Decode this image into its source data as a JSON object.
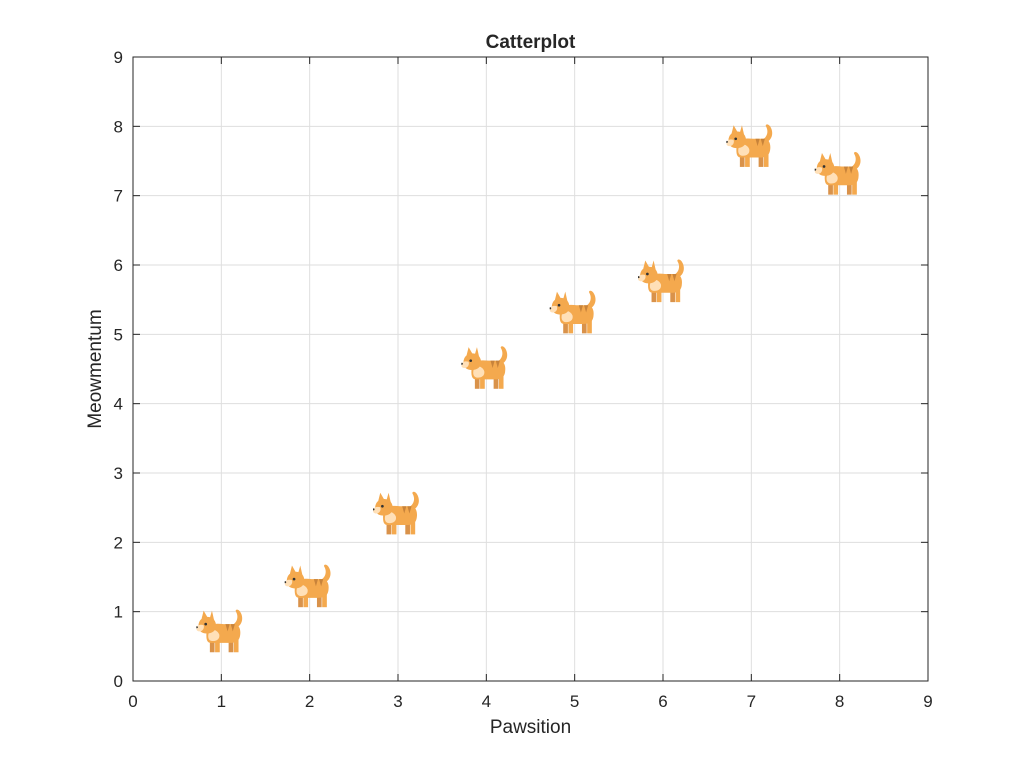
{
  "chart_data": {
    "type": "scatter",
    "title": "Catterplot",
    "xlabel": "Pawsition",
    "ylabel": "Meowmentum",
    "xlim": [
      0,
      9
    ],
    "ylim": [
      0,
      9
    ],
    "xticks": [
      "0",
      "1",
      "2",
      "3",
      "4",
      "5",
      "6",
      "7",
      "8",
      "9"
    ],
    "yticks": [
      "0",
      "1",
      "2",
      "3",
      "4",
      "5",
      "6",
      "7",
      "8",
      "9"
    ],
    "grid": true,
    "marker": "cat-icon",
    "colors": {
      "body": "#F4A94E",
      "stripe": "#C8833A",
      "light": "#FFE0B8",
      "eye": "#333333"
    },
    "series": [
      {
        "points": [
          {
            "x": 1,
            "y": 0.7
          },
          {
            "x": 2,
            "y": 1.35
          },
          {
            "x": 3,
            "y": 2.4
          },
          {
            "x": 4,
            "y": 4.5
          },
          {
            "x": 5,
            "y": 5.3
          },
          {
            "x": 6,
            "y": 5.75
          },
          {
            "x": 7,
            "y": 7.7
          },
          {
            "x": 8,
            "y": 7.3
          }
        ]
      }
    ]
  }
}
